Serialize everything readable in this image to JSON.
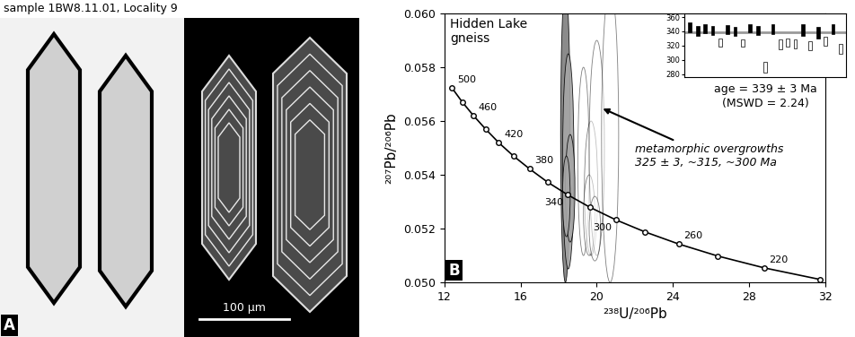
{
  "panel_a": {
    "title": "sample 1BW8.11.01, Locality 9",
    "label": "A",
    "scale_bar": "100 µm"
  },
  "chart_data": [
    {
      "type": "concordia",
      "label": "B",
      "title": "Hidden Lake\ngneiss",
      "x_label": "²³⁸U/²⁰⁶Pb",
      "y_label": "²⁰⁷Pb/²⁰⁶Pb",
      "xlim": [
        12,
        32
      ],
      "ylim": [
        0.05,
        0.06
      ],
      "xticks": [
        12,
        16,
        20,
        24,
        28,
        32
      ],
      "yticks": [
        {
          "value": 0.05,
          "label": "0.050"
        },
        {
          "value": 0.052,
          "label": "0.052"
        },
        {
          "value": 0.054,
          "label": "0.054"
        },
        {
          "value": 0.056,
          "label": "0.056"
        },
        {
          "value": 0.058,
          "label": "0.058"
        },
        {
          "value": 0.06,
          "label": "0.060"
        }
      ],
      "concordia": {
        "color": "#000000",
        "marker": "o",
        "age": [
          500,
          480,
          460,
          440,
          420,
          400,
          380,
          360,
          340,
          320,
          300,
          280,
          260,
          240,
          220,
          200
        ],
        "age_labels": [
          500,
          null,
          460,
          null,
          420,
          null,
          380,
          null,
          340,
          null,
          300,
          null,
          260,
          null,
          220,
          null
        ],
        "x": [
          12.399,
          12.936,
          13.52,
          14.157,
          14.854,
          15.621,
          16.469,
          17.411,
          18.464,
          19.649,
          20.992,
          22.527,
          24.297,
          26.363,
          28.804,
          31.735
        ],
        "y": [
          0.05722,
          0.0567,
          0.0562,
          0.0557,
          0.05519,
          0.0547,
          0.05422,
          0.05373,
          0.05326,
          0.05279,
          0.05233,
          0.05188,
          0.05143,
          0.05098,
          0.05054,
          0.05011
        ]
      },
      "ellipses": [
        {
          "x": 18.35,
          "y": 0.0555,
          "x_err": 0.25,
          "y_err": 0.0055,
          "color": "#7f7f7f"
        },
        {
          "x": 18.5,
          "y": 0.0545,
          "x_err": 0.3,
          "y_err": 0.004,
          "color": "#a6a6a6"
        },
        {
          "x": 18.6,
          "y": 0.0535,
          "x_err": 0.25,
          "y_err": 0.002,
          "color": "#a6a6a6"
        },
        {
          "x": 18.4,
          "y": 0.0532,
          "x_err": 0.2,
          "y_err": 0.0015,
          "color": "#a6a6a6"
        },
        {
          "x": 19.3,
          "y": 0.0545,
          "x_err": 0.3,
          "y_err": 0.0035,
          "color": "#ffffff"
        },
        {
          "x": 19.7,
          "y": 0.0535,
          "x_err": 0.35,
          "y_err": 0.0025,
          "color": "#ffffff"
        },
        {
          "x": 19.6,
          "y": 0.0525,
          "x_err": 0.3,
          "y_err": 0.0015,
          "color": "#ffffff"
        },
        {
          "x": 20.0,
          "y": 0.055,
          "x_err": 0.4,
          "y_err": 0.004,
          "color": "#ffffff"
        },
        {
          "x": 20.7,
          "y": 0.0555,
          "x_err": 0.45,
          "y_err": 0.0055,
          "color": "#ffffff"
        },
        {
          "x": 19.9,
          "y": 0.052,
          "x_err": 0.3,
          "y_err": 0.0012,
          "color": "#ffffff"
        }
      ],
      "annotation": "metamorphic overgrowths\n325 ± 3, ~315, ~300 Ma"
    },
    {
      "type": "range",
      "title": "age = 339 ± 3 Ma",
      "subtitle": "(MSWD = 2.24)",
      "ylim": [
        275,
        365
      ],
      "yticks": [
        280,
        300,
        320,
        340,
        360
      ],
      "tick_labels": "y",
      "low": [
        338,
        333,
        337,
        335,
        318,
        336,
        333,
        318,
        338,
        335,
        282,
        336,
        315,
        318,
        316,
        334,
        314,
        330,
        320,
        336,
        308
      ],
      "high": [
        352,
        348,
        350,
        348,
        330,
        349,
        346,
        328,
        350,
        347,
        297,
        350,
        328,
        330,
        328,
        350,
        326,
        346,
        332,
        350,
        322
      ],
      "colors": [
        "#000000",
        "#000000",
        "#000000",
        "#000000",
        "#ffffff",
        "#000000",
        "#000000",
        "#ffffff",
        "#000000",
        "#000000",
        "#ffffff",
        "#000000",
        "#ffffff",
        "#ffffff",
        "#ffffff",
        "#000000",
        "#ffffff",
        "#000000",
        "#ffffff",
        "#000000",
        "#ffffff"
      ],
      "mean": 339,
      "mean_color": "#999999"
    }
  ]
}
